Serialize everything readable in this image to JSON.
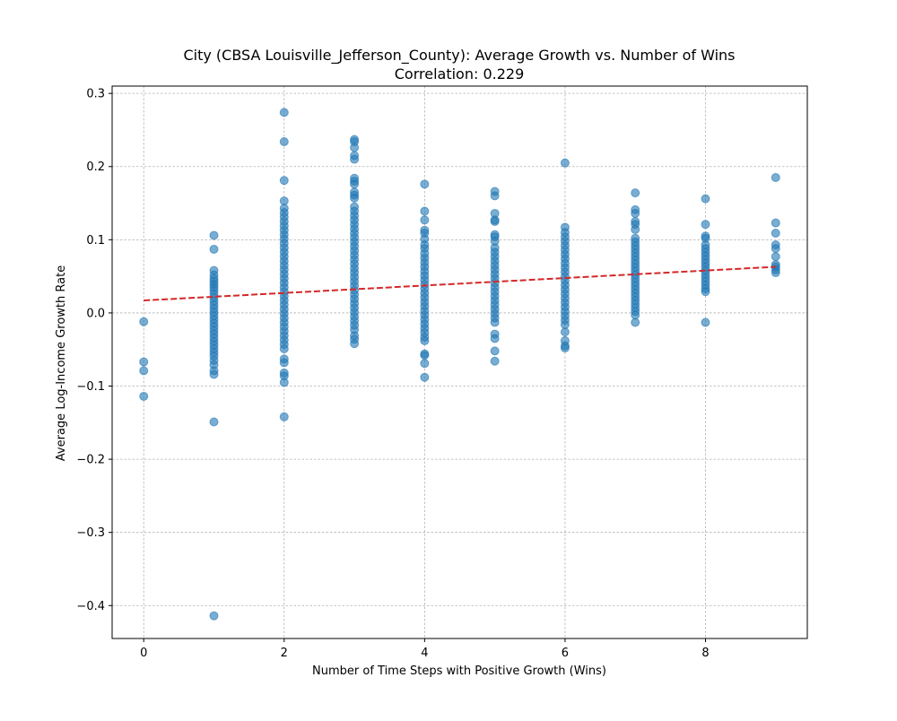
{
  "chart_data": {
    "type": "scatter",
    "title": "City (CBSA Louisville_Jefferson_County): Average Growth vs. Number of Wins",
    "subtitle": "Correlation: 0.229",
    "xlabel": "Number of Time Steps with Positive Growth (Wins)",
    "ylabel": "Average Log-Income Growth Rate",
    "xlim": [
      -0.45,
      9.45
    ],
    "ylim": [
      -0.445,
      0.31
    ],
    "xticks": [
      0,
      2,
      4,
      6,
      8
    ],
    "xtick_labels": [
      "0",
      "2",
      "4",
      "6",
      "8"
    ],
    "yticks": [
      -0.4,
      -0.3,
      -0.2,
      -0.1,
      0.0,
      0.1,
      0.2,
      0.3
    ],
    "ytick_labels": [
      "−0.4",
      "−0.3",
      "−0.2",
      "−0.1",
      "0.0",
      "0.1",
      "0.2",
      "0.3"
    ],
    "grid": true,
    "point_color": "#1f77b4",
    "point_alpha": 0.6,
    "trend_color": "#d62728",
    "trend_line": {
      "x": [
        0,
        9
      ],
      "y": [
        0.017,
        0.063
      ],
      "style": "dashed"
    },
    "points": [
      [
        0,
        -0.012
      ],
      [
        0,
        -0.067
      ],
      [
        0,
        -0.079
      ],
      [
        0,
        -0.114
      ],
      [
        1,
        0.106
      ],
      [
        1,
        0.087
      ],
      [
        1,
        0.058
      ],
      [
        1,
        0.052
      ],
      [
        1,
        0.047
      ],
      [
        1,
        0.043
      ],
      [
        1,
        0.039
      ],
      [
        1,
        0.035
      ],
      [
        1,
        0.031
      ],
      [
        1,
        0.026
      ],
      [
        1,
        0.021
      ],
      [
        1,
        0.016
      ],
      [
        1,
        0.011
      ],
      [
        1,
        0.006
      ],
      [
        1,
        0.001
      ],
      [
        1,
        -0.004
      ],
      [
        1,
        -0.009
      ],
      [
        1,
        -0.014
      ],
      [
        1,
        -0.019
      ],
      [
        1,
        -0.024
      ],
      [
        1,
        -0.029
      ],
      [
        1,
        -0.034
      ],
      [
        1,
        -0.039
      ],
      [
        1,
        -0.044
      ],
      [
        1,
        -0.049
      ],
      [
        1,
        -0.054
      ],
      [
        1,
        -0.059
      ],
      [
        1,
        -0.065
      ],
      [
        1,
        -0.071
      ],
      [
        1,
        -0.079
      ],
      [
        1,
        -0.084
      ],
      [
        1,
        -0.149
      ],
      [
        1,
        -0.414
      ],
      [
        2,
        0.274
      ],
      [
        2,
        0.234
      ],
      [
        2,
        0.181
      ],
      [
        2,
        0.153
      ],
      [
        2,
        0.143
      ],
      [
        2,
        0.137
      ],
      [
        2,
        0.131
      ],
      [
        2,
        0.125
      ],
      [
        2,
        0.119
      ],
      [
        2,
        0.113
      ],
      [
        2,
        0.107
      ],
      [
        2,
        0.101
      ],
      [
        2,
        0.095
      ],
      [
        2,
        0.089
      ],
      [
        2,
        0.083
      ],
      [
        2,
        0.077
      ],
      [
        2,
        0.071
      ],
      [
        2,
        0.065
      ],
      [
        2,
        0.059
      ],
      [
        2,
        0.053
      ],
      [
        2,
        0.047
      ],
      [
        2,
        0.041
      ],
      [
        2,
        0.035
      ],
      [
        2,
        0.029
      ],
      [
        2,
        0.023
      ],
      [
        2,
        0.017
      ],
      [
        2,
        0.011
      ],
      [
        2,
        0.005
      ],
      [
        2,
        -0.001
      ],
      [
        2,
        -0.007
      ],
      [
        2,
        -0.013
      ],
      [
        2,
        -0.019
      ],
      [
        2,
        -0.025
      ],
      [
        2,
        -0.031
      ],
      [
        2,
        -0.037
      ],
      [
        2,
        -0.043
      ],
      [
        2,
        -0.049
      ],
      [
        2,
        -0.063
      ],
      [
        2,
        -0.068
      ],
      [
        2,
        -0.082
      ],
      [
        2,
        -0.086
      ],
      [
        2,
        -0.095
      ],
      [
        2,
        -0.142
      ],
      [
        3,
        0.237
      ],
      [
        3,
        0.234
      ],
      [
        3,
        0.226
      ],
      [
        3,
        0.215
      ],
      [
        3,
        0.21
      ],
      [
        3,
        0.184
      ],
      [
        3,
        0.18
      ],
      [
        3,
        0.176
      ],
      [
        3,
        0.165
      ],
      [
        3,
        0.161
      ],
      [
        3,
        0.157
      ],
      [
        3,
        0.145
      ],
      [
        3,
        0.139
      ],
      [
        3,
        0.133
      ],
      [
        3,
        0.127
      ],
      [
        3,
        0.121
      ],
      [
        3,
        0.115
      ],
      [
        3,
        0.109
      ],
      [
        3,
        0.103
      ],
      [
        3,
        0.097
      ],
      [
        3,
        0.091
      ],
      [
        3,
        0.085
      ],
      [
        3,
        0.079
      ],
      [
        3,
        0.073
      ],
      [
        3,
        0.067
      ],
      [
        3,
        0.061
      ],
      [
        3,
        0.055
      ],
      [
        3,
        0.049
      ],
      [
        3,
        0.043
      ],
      [
        3,
        0.037
      ],
      [
        3,
        0.031
      ],
      [
        3,
        0.025
      ],
      [
        3,
        0.019
      ],
      [
        3,
        0.013
      ],
      [
        3,
        0.007
      ],
      [
        3,
        0.001
      ],
      [
        3,
        -0.005
      ],
      [
        3,
        -0.011
      ],
      [
        3,
        -0.017
      ],
      [
        3,
        -0.023
      ],
      [
        3,
        -0.031
      ],
      [
        3,
        -0.036
      ],
      [
        3,
        -0.042
      ],
      [
        4,
        0.176
      ],
      [
        4,
        0.139
      ],
      [
        4,
        0.127
      ],
      [
        4,
        0.113
      ],
      [
        4,
        0.109
      ],
      [
        4,
        0.101
      ],
      [
        4,
        0.093
      ],
      [
        4,
        0.088
      ],
      [
        4,
        0.081
      ],
      [
        4,
        0.075
      ],
      [
        4,
        0.069
      ],
      [
        4,
        0.063
      ],
      [
        4,
        0.057
      ],
      [
        4,
        0.051
      ],
      [
        4,
        0.045
      ],
      [
        4,
        0.039
      ],
      [
        4,
        0.033
      ],
      [
        4,
        0.027
      ],
      [
        4,
        0.021
      ],
      [
        4,
        0.015
      ],
      [
        4,
        0.009
      ],
      [
        4,
        0.003
      ],
      [
        4,
        -0.003
      ],
      [
        4,
        -0.009
      ],
      [
        4,
        -0.015
      ],
      [
        4,
        -0.021
      ],
      [
        4,
        -0.027
      ],
      [
        4,
        -0.033
      ],
      [
        4,
        -0.038
      ],
      [
        4,
        -0.056
      ],
      [
        4,
        -0.058
      ],
      [
        4,
        -0.069
      ],
      [
        4,
        -0.088
      ],
      [
        5,
        0.166
      ],
      [
        5,
        0.16
      ],
      [
        5,
        0.136
      ],
      [
        5,
        0.127
      ],
      [
        5,
        0.125
      ],
      [
        5,
        0.107
      ],
      [
        5,
        0.104
      ],
      [
        5,
        0.098
      ],
      [
        5,
        0.089
      ],
      [
        5,
        0.083
      ],
      [
        5,
        0.077
      ],
      [
        5,
        0.071
      ],
      [
        5,
        0.065
      ],
      [
        5,
        0.059
      ],
      [
        5,
        0.053
      ],
      [
        5,
        0.047
      ],
      [
        5,
        0.041
      ],
      [
        5,
        0.035
      ],
      [
        5,
        0.029
      ],
      [
        5,
        0.023
      ],
      [
        5,
        0.017
      ],
      [
        5,
        0.011
      ],
      [
        5,
        0.005
      ],
      [
        5,
        -0.001
      ],
      [
        5,
        -0.007
      ],
      [
        5,
        -0.013
      ],
      [
        5,
        -0.029
      ],
      [
        5,
        -0.035
      ],
      [
        5,
        -0.052
      ],
      [
        5,
        -0.066
      ],
      [
        6,
        0.205
      ],
      [
        6,
        0.117
      ],
      [
        6,
        0.11
      ],
      [
        6,
        0.104
      ],
      [
        6,
        0.098
      ],
      [
        6,
        0.092
      ],
      [
        6,
        0.086
      ],
      [
        6,
        0.08
      ],
      [
        6,
        0.074
      ],
      [
        6,
        0.068
      ],
      [
        6,
        0.062
      ],
      [
        6,
        0.056
      ],
      [
        6,
        0.05
      ],
      [
        6,
        0.044
      ],
      [
        6,
        0.038
      ],
      [
        6,
        0.032
      ],
      [
        6,
        0.026
      ],
      [
        6,
        0.02
      ],
      [
        6,
        0.014
      ],
      [
        6,
        0.008
      ],
      [
        6,
        0.002
      ],
      [
        6,
        -0.004
      ],
      [
        6,
        -0.01
      ],
      [
        6,
        -0.016
      ],
      [
        6,
        -0.026
      ],
      [
        6,
        -0.038
      ],
      [
        6,
        -0.045
      ],
      [
        6,
        -0.048
      ],
      [
        7,
        0.164
      ],
      [
        7,
        0.141
      ],
      [
        7,
        0.136
      ],
      [
        7,
        0.125
      ],
      [
        7,
        0.121
      ],
      [
        7,
        0.114
      ],
      [
        7,
        0.102
      ],
      [
        7,
        0.097
      ],
      [
        7,
        0.092
      ],
      [
        7,
        0.087
      ],
      [
        7,
        0.082
      ],
      [
        7,
        0.077
      ],
      [
        7,
        0.072
      ],
      [
        7,
        0.067
      ],
      [
        7,
        0.062
      ],
      [
        7,
        0.057
      ],
      [
        7,
        0.052
      ],
      [
        7,
        0.047
      ],
      [
        7,
        0.042
      ],
      [
        7,
        0.037
      ],
      [
        7,
        0.032
      ],
      [
        7,
        0.027
      ],
      [
        7,
        0.022
      ],
      [
        7,
        0.017
      ],
      [
        7,
        0.012
      ],
      [
        7,
        0.007
      ],
      [
        7,
        0.002
      ],
      [
        7,
        -0.003
      ],
      [
        7,
        -0.013
      ],
      [
        8,
        0.156
      ],
      [
        8,
        0.121
      ],
      [
        8,
        0.105
      ],
      [
        8,
        0.102
      ],
      [
        8,
        0.093
      ],
      [
        8,
        0.088
      ],
      [
        8,
        0.083
      ],
      [
        8,
        0.078
      ],
      [
        8,
        0.073
      ],
      [
        8,
        0.068
      ],
      [
        8,
        0.063
      ],
      [
        8,
        0.058
      ],
      [
        8,
        0.053
      ],
      [
        8,
        0.048
      ],
      [
        8,
        0.043
      ],
      [
        8,
        0.038
      ],
      [
        8,
        0.033
      ],
      [
        8,
        0.029
      ],
      [
        8,
        -0.013
      ],
      [
        9,
        0.185
      ],
      [
        9,
        0.123
      ],
      [
        9,
        0.109
      ],
      [
        9,
        0.093
      ],
      [
        9,
        0.088
      ],
      [
        9,
        0.077
      ],
      [
        9,
        0.066
      ],
      [
        9,
        0.063
      ],
      [
        9,
        0.059
      ],
      [
        9,
        0.055
      ]
    ]
  }
}
